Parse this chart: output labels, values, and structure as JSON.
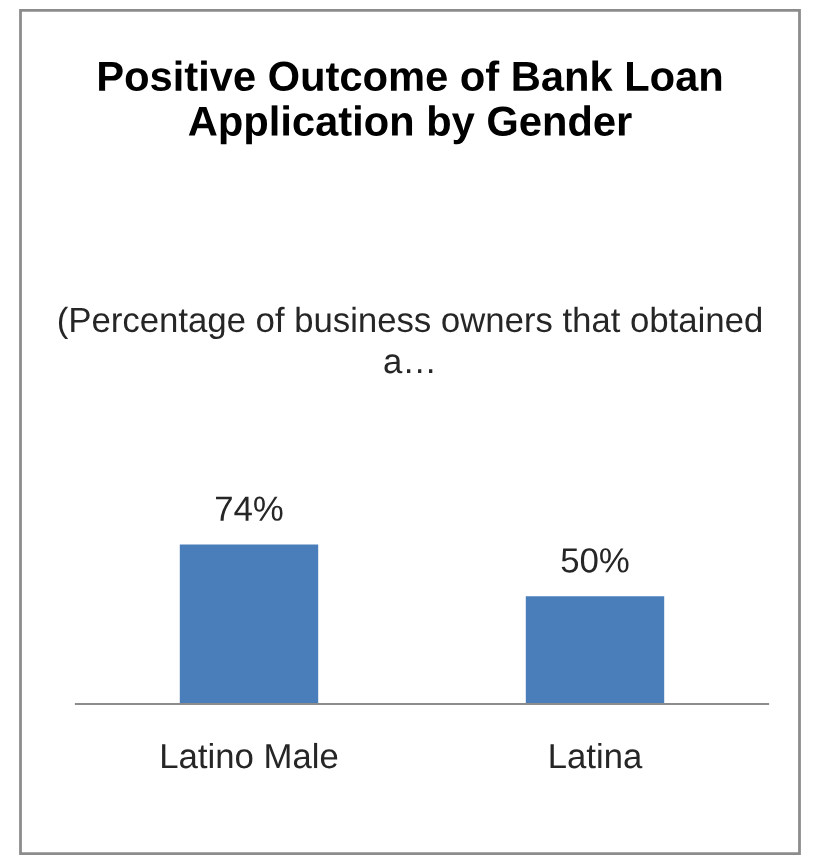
{
  "chart_data": {
    "type": "bar",
    "title": "Positive Outcome of Bank Loan Application by Gender",
    "subtitle": "(Percentage of business owners that obtained a…",
    "categories": [
      "Latino Male",
      "Latina"
    ],
    "values": [
      74,
      50
    ],
    "color": "#4a7ebb",
    "value_labels": [
      "74%",
      "50%"
    ],
    "grid": false,
    "legend": false
  }
}
